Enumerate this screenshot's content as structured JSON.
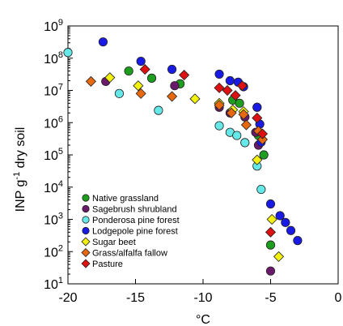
{
  "chart_data": {
    "type": "scatter",
    "title": "",
    "xlabel": "°C",
    "ylabel_prefix": "INP g",
    "ylabel_exp": "-1",
    "ylabel_suffix": " dry soil",
    "xlim": [
      -20,
      0
    ],
    "ylim_log10": [
      1,
      9
    ],
    "log_y": true,
    "grid": false,
    "legend_position": "bottom-left",
    "x_ticks": [
      {
        "value": -20,
        "label": "-20"
      },
      {
        "value": -15,
        "label": "-15"
      },
      {
        "value": -10,
        "label": "-10"
      },
      {
        "value": -5,
        "label": "-5"
      },
      {
        "value": 0,
        "label": "0"
      }
    ],
    "y_ticks": [
      {
        "exp": 1,
        "base": "10",
        "sup": "1"
      },
      {
        "exp": 2,
        "base": "10",
        "sup": "2"
      },
      {
        "exp": 3,
        "base": "10",
        "sup": "3"
      },
      {
        "exp": 4,
        "base": "10",
        "sup": "4"
      },
      {
        "exp": 5,
        "base": "10",
        "sup": "5"
      },
      {
        "exp": 6,
        "base": "10",
        "sup": "6"
      },
      {
        "exp": 7,
        "base": "10",
        "sup": "7"
      },
      {
        "exp": 8,
        "base": "10",
        "sup": "8"
      },
      {
        "exp": 9,
        "base": "10",
        "sup": "9"
      }
    ],
    "series": [
      {
        "name": "Native grassland",
        "marker": "circle",
        "color": "#1e9e1e",
        "points": [
          [
            -15.5,
            40000000.0
          ],
          [
            -13.8,
            24000000.0
          ],
          [
            -11.7,
            16000000.0
          ],
          [
            -7.8,
            5000000.0
          ],
          [
            -7.3,
            4000000.0
          ],
          [
            -6.0,
            3000000.0
          ],
          [
            -5.9,
            400000.0
          ],
          [
            -5.5,
            100000.0
          ],
          [
            -5.0,
            160.0
          ]
        ]
      },
      {
        "name": "Sagebrush shrubland",
        "marker": "circle",
        "color": "#6a1a6a",
        "points": [
          [
            -17.2,
            19000000.0
          ],
          [
            -12.1,
            14000000.0
          ],
          [
            -8.8,
            3000000.0
          ],
          [
            -8.0,
            2000000.0
          ],
          [
            -6.9,
            1500000.0
          ],
          [
            -6.1,
            500000.0
          ],
          [
            -5.9,
            200000.0
          ],
          [
            -5.0,
            25.0
          ]
        ]
      },
      {
        "name": "Ponderosa pine forest",
        "marker": "circle",
        "color": "#66e8e8",
        "points": [
          [
            -20.0,
            150000000.0
          ],
          [
            -16.2,
            8000000.0
          ],
          [
            -13.3,
            2400000.0
          ],
          [
            -8.8,
            800000.0
          ],
          [
            -8.0,
            500000.0
          ],
          [
            -7.5,
            400000.0
          ],
          [
            -6.9,
            240000.0
          ],
          [
            -6.0,
            45000.0
          ],
          [
            -5.7,
            8500.0
          ]
        ]
      },
      {
        "name": "Lodgepole pine forest",
        "marker": "circle",
        "color": "#1a1ae6",
        "points": [
          [
            -17.4,
            320000000.0
          ],
          [
            -14.6,
            80000000.0
          ],
          [
            -12.3,
            45000000.0
          ],
          [
            -8.8,
            32000000.0
          ],
          [
            -8.0,
            20000000.0
          ],
          [
            -7.4,
            18000000.0
          ],
          [
            -7.0,
            13000000.0
          ],
          [
            -6.0,
            3000000.0
          ],
          [
            -5.8,
            900000.0
          ],
          [
            -5.7,
            250000.0
          ],
          [
            -5.0,
            3000.0
          ],
          [
            -4.3,
            1300.0
          ],
          [
            -3.9,
            800.0
          ],
          [
            -3.5,
            450.0
          ],
          [
            -3.0,
            220.0
          ]
        ]
      },
      {
        "name": "Sugar beet",
        "marker": "diamond",
        "color": "#f2f20c",
        "points": [
          [
            -16.9,
            25000000.0
          ],
          [
            -14.8,
            14000000.0
          ],
          [
            -10.6,
            5500000.0
          ],
          [
            -8.8,
            4000000.0
          ],
          [
            -7.8,
            2500000.0
          ],
          [
            -7.0,
            2200000.0
          ],
          [
            -6.0,
            70000.0
          ],
          [
            -4.9,
            1000.0
          ],
          [
            -4.4,
            70.0
          ]
        ]
      },
      {
        "name": "Grass/alfalfa fallow",
        "marker": "diamond",
        "color": "#e8680f",
        "points": [
          [
            -18.3,
            19000000.0
          ],
          [
            -14.6,
            8000000.0
          ],
          [
            -12.3,
            6500000.0
          ],
          [
            -8.8,
            3500000.0
          ],
          [
            -7.9,
            2000000.0
          ],
          [
            -7.0,
            1800000.0
          ],
          [
            -6.8,
            850000.0
          ],
          [
            -5.9,
            550000.0
          ],
          [
            -5.6,
            300000.0
          ]
        ]
      },
      {
        "name": "Pasture",
        "marker": "diamond",
        "color": "#dd1111",
        "points": [
          [
            -14.3,
            45000000.0
          ],
          [
            -11.4,
            30000000.0
          ],
          [
            -8.8,
            12000000.0
          ],
          [
            -8.2,
            10000000.0
          ],
          [
            -7.6,
            7000000.0
          ],
          [
            -7.1,
            14000000.0
          ],
          [
            -6.0,
            1400000.0
          ],
          [
            -5.6,
            450000.0
          ],
          [
            -5.0,
            400.0
          ]
        ]
      }
    ]
  }
}
